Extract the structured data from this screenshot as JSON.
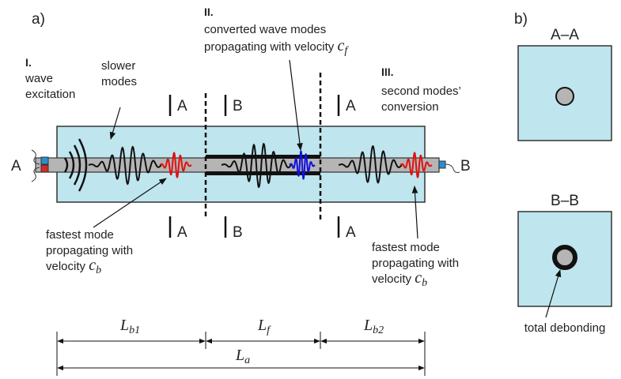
{
  "panel_a": {
    "label": "a)",
    "region_1": {
      "numeral": "I.",
      "lines": [
        "wave",
        "excitation"
      ]
    },
    "slower_modes": [
      "slower",
      "modes"
    ],
    "region_2": {
      "numeral": "II.",
      "lines": [
        "converted wave modes",
        "propagating with velocity"
      ],
      "symbol": "c",
      "subscript": "f"
    },
    "region_3": {
      "numeral": "III.",
      "lines": [
        "second modes’",
        "conversion"
      ]
    },
    "end_labels": [
      "A",
      "B"
    ],
    "section_labels": [
      "A",
      "B",
      "A"
    ],
    "fastest_left": {
      "lines": [
        "fastest mode",
        "propagating with",
        "velocity"
      ],
      "symbol": "c",
      "subscript": "b"
    },
    "fastest_right": {
      "lines": [
        "fastest mode",
        "propagating with",
        "velocity"
      ],
      "symbol": "c",
      "subscript": "b"
    },
    "dimensions": [
      {
        "symbol": "L",
        "subscript": "b1"
      },
      {
        "symbol": "L",
        "subscript": "f"
      },
      {
        "symbol": "L",
        "subscript": "b2"
      },
      {
        "symbol": "L",
        "subscript": "a"
      }
    ]
  },
  "panel_b": {
    "label": "b)",
    "sections": [
      {
        "title": "A–A"
      },
      {
        "title": "B–B"
      }
    ],
    "annotation": "total debonding"
  }
}
